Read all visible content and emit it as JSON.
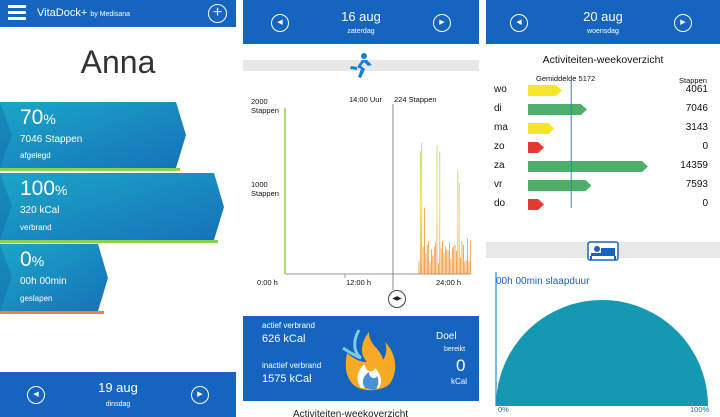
{
  "screen1": {
    "app_title": "VitaDock+",
    "app_subtitle": "by Medisana",
    "user_name": "Anna",
    "stats": [
      {
        "percent": "70",
        "percent_sign": "%",
        "value": "7046 Stappen",
        "label": "afgelegd",
        "fill": 0.7
      },
      {
        "percent": "100",
        "percent_sign": "%",
        "value": "320 kCal",
        "label": "verbrand",
        "fill": 1.0
      },
      {
        "percent": "0",
        "percent_sign": "%",
        "value": "00h 00min",
        "label": "geslapen",
        "fill": 0.0
      }
    ],
    "date": "19 aug",
    "weekday": "dinsdag",
    "prev_icon": "◀",
    "next_icon": "▶"
  },
  "screen2": {
    "date": "16 aug",
    "weekday": "zaterdag",
    "y_top": "2000",
    "y_top_unit": "Stappen",
    "y_mid": "1000",
    "y_mid_unit": "Stappen",
    "x_labels": [
      "0:00 h",
      "12:00 h",
      "24:00 h"
    ],
    "cursor_time": "14:00 Uur",
    "cursor_value": "224 Stappen",
    "active_label": "actief verbrand",
    "active_value": "626 kCal",
    "inactive_label": "inactief verbrand",
    "inactive_value": "1575 kCal",
    "goal_label": "Doel",
    "goal_sub": "bereikt",
    "goal_value": "0",
    "goal_unit": "kCal",
    "cut_off_title": "Activiteiten-weekoverzicht",
    "toggle_icon": "◀▶"
  },
  "chart_data": {
    "type": "bar",
    "title": "",
    "ylim": [
      0,
      2000
    ],
    "x_range": [
      "0:00 h",
      "24:00 h"
    ],
    "values": [
      0,
      0,
      0,
      0,
      0,
      0,
      0,
      0,
      0,
      0,
      0,
      0,
      0,
      0,
      0,
      0,
      0,
      0,
      0,
      0,
      0,
      0,
      0,
      0,
      0,
      0,
      0,
      0,
      0,
      0,
      0,
      0,
      0,
      0,
      0,
      0,
      0,
      0,
      0,
      0,
      0,
      0,
      0,
      0,
      0,
      0,
      0,
      0,
      0,
      0,
      0,
      0,
      0,
      0,
      0,
      0,
      0,
      0,
      0,
      0,
      0,
      0,
      0,
      0,
      0,
      0,
      0,
      0,
      0,
      0,
      0,
      0,
      0,
      0,
      0,
      0,
      0,
      0,
      0,
      0,
      0,
      0,
      0,
      0,
      0,
      0,
      0,
      0,
      0,
      0,
      0,
      0,
      0,
      0,
      0,
      0,
      150,
      1480,
      1580,
      330,
      800,
      250,
      350,
      400,
      150,
      300,
      224,
      330,
      380,
      1540,
      130,
      1480,
      310,
      400,
      250,
      330,
      300,
      280,
      380,
      180,
      320,
      330,
      350,
      280,
      1250,
      1100,
      200,
      400,
      350,
      150,
      170,
      430,
      150,
      400
    ],
    "colors": {
      "low": "#f08a28",
      "mid": "#f7d82a",
      "high": "#a8d84a"
    }
  },
  "screen3": {
    "date": "20 aug",
    "weekday": "woensdag",
    "title": "Activiteiten-weekoverzicht",
    "avg_label": "Gemiddelde",
    "avg_value": "5172",
    "col_header": "Stappen",
    "days": [
      {
        "day": "wo",
        "steps": "4061",
        "value": 4061,
        "color": "#f5e62c"
      },
      {
        "day": "di",
        "steps": "7046",
        "value": 7046,
        "color": "#4cae6a"
      },
      {
        "day": "ma",
        "steps": "3143",
        "value": 3143,
        "color": "#f5e62c"
      },
      {
        "day": "zo",
        "steps": "0",
        "value": 0,
        "color": "#e53935"
      },
      {
        "day": "za",
        "steps": "14359",
        "value": 14359,
        "color": "#4cae6a"
      },
      {
        "day": "vr",
        "steps": "7593",
        "value": 7593,
        "color": "#4cae6a"
      },
      {
        "day": "do",
        "steps": "0",
        "value": 0,
        "color": "#e53935"
      }
    ],
    "sleep_title": "00h 00min slaapduur",
    "sleep_min": "0%",
    "sleep_max": "100%",
    "sleep_value": 0
  }
}
